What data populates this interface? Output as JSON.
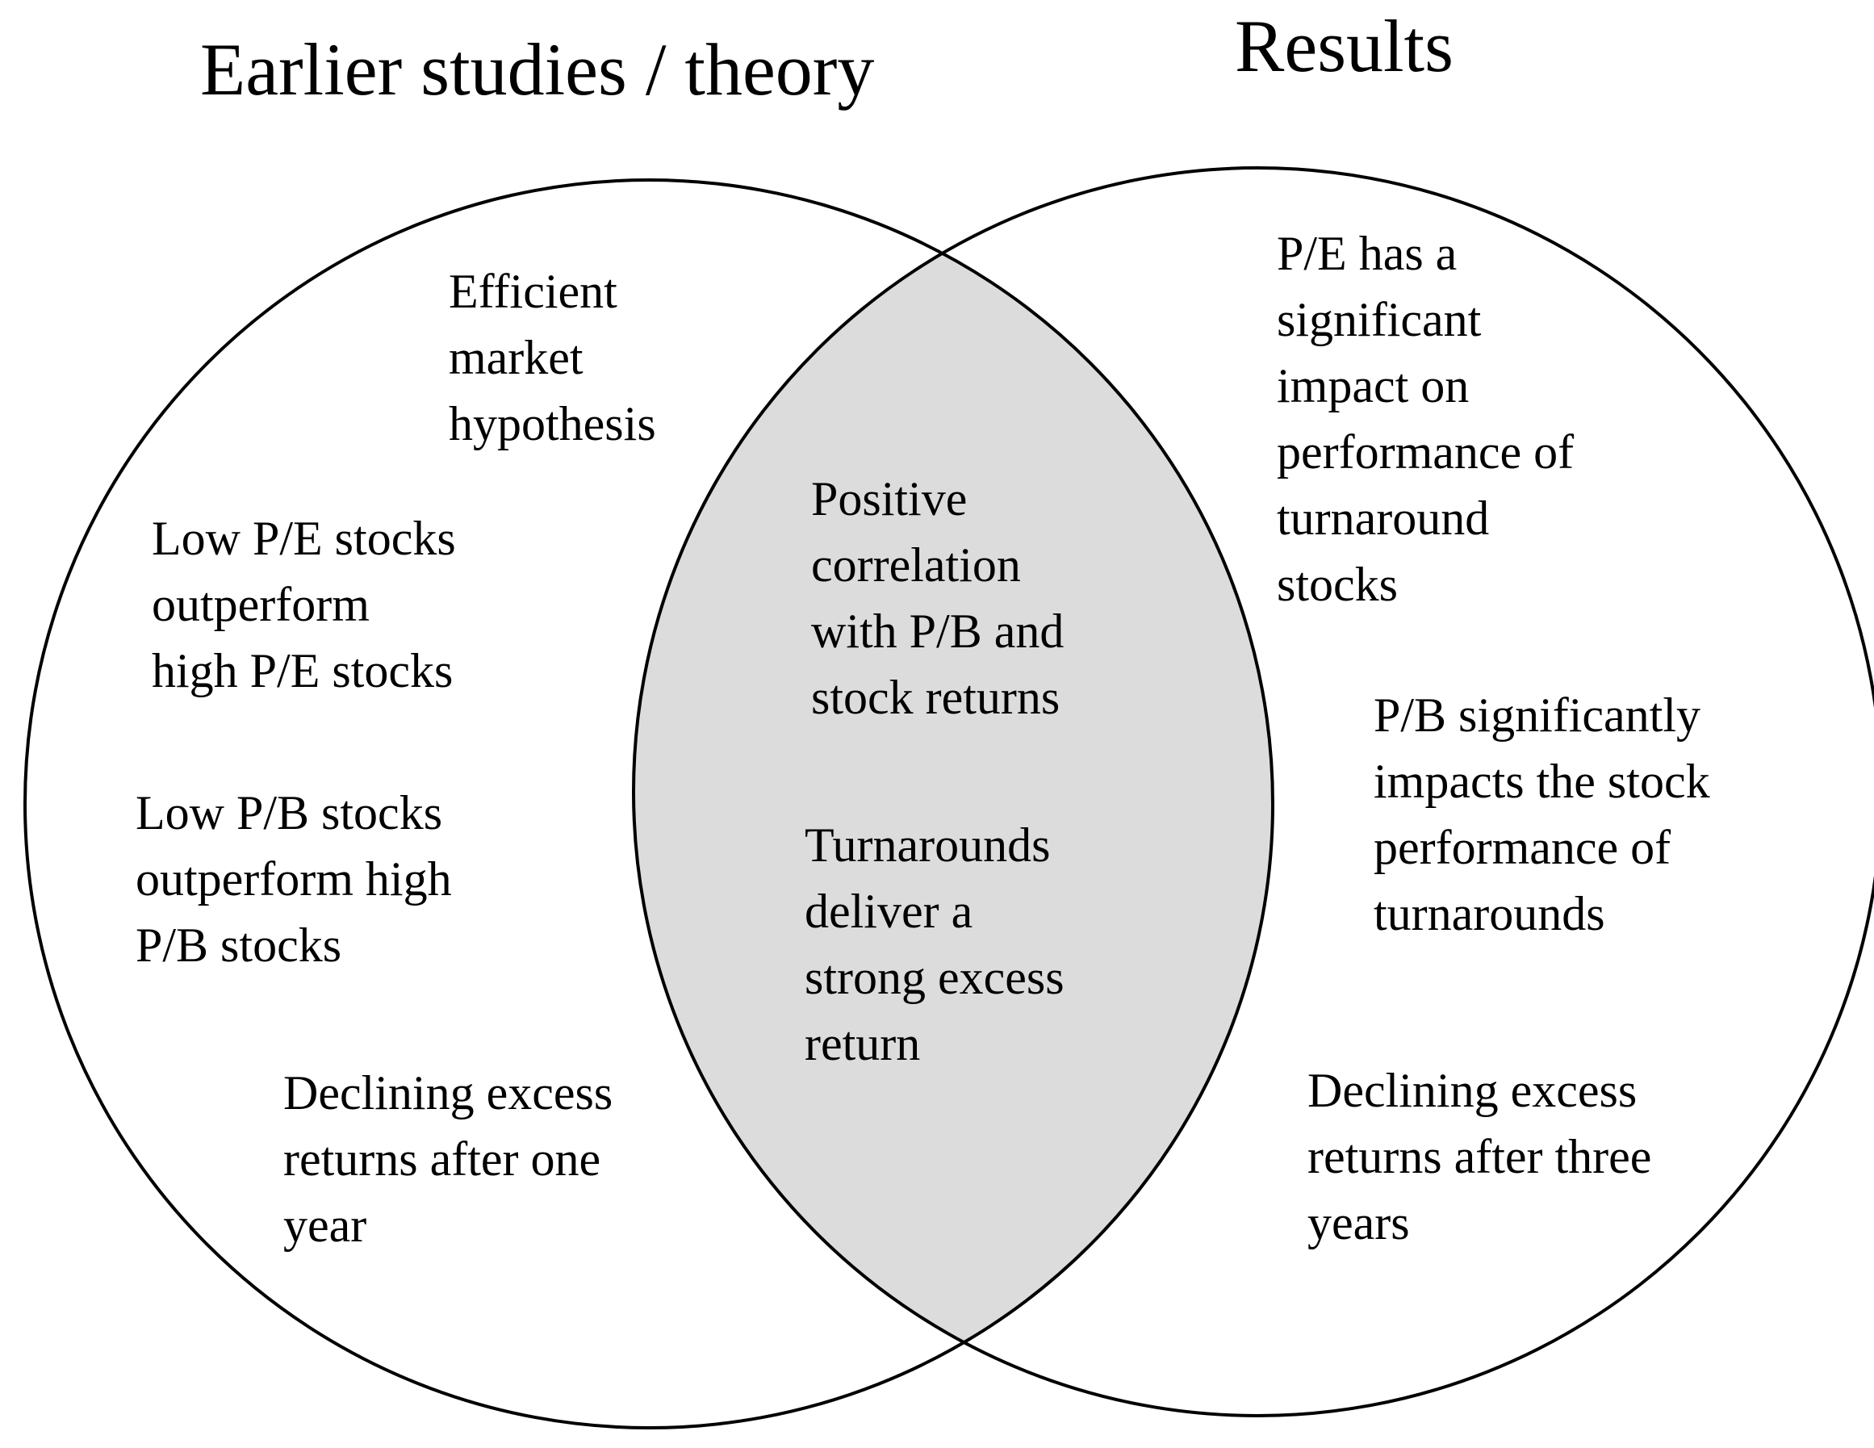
{
  "left_title": "Earlier studies / theory",
  "right_title": "Results",
  "left_items": [
    [
      "Efficient",
      "market",
      "hypothesis"
    ],
    [
      "Low P/E stocks",
      "outperform",
      "high P/E stocks"
    ],
    [
      "Low P/B stocks",
      "outperform high",
      "P/B stocks"
    ],
    [
      "Declining excess",
      "returns after one",
      "year"
    ]
  ],
  "overlap_items": [
    [
      "Positive",
      "correlation",
      "with P/B and",
      "stock returns"
    ],
    [
      "Turnarounds",
      "deliver a",
      "strong excess",
      "return"
    ]
  ],
  "right_items": [
    [
      "P/E has a",
      "significant",
      "impact on",
      "performance of",
      "turnaround",
      "stocks"
    ],
    [
      "P/B significantly",
      "impacts the stock",
      "performance of",
      "turnarounds"
    ],
    [
      "Declining excess",
      "returns after three",
      "years"
    ]
  ],
  "colors": {
    "overlap_fill": "#dcdcdc",
    "stroke": "#000000",
    "background": "#ffffff"
  }
}
